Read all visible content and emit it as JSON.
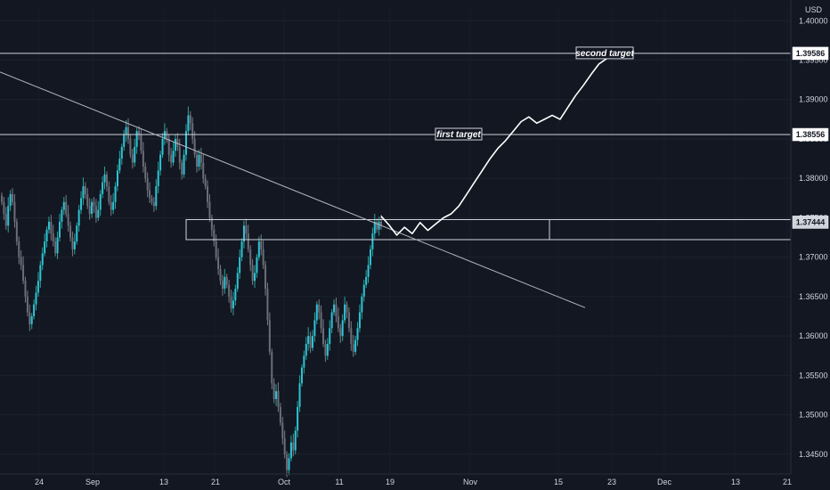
{
  "chart_data": {
    "type": "candlestick",
    "instrument_currency": "USD",
    "y_axis": {
      "min": 1.3425,
      "max": 1.4015,
      "ticks": [
        1.4,
        1.395,
        1.39,
        1.385,
        1.38,
        1.375,
        1.37,
        1.365,
        1.36,
        1.355,
        1.35,
        1.345
      ]
    },
    "x_axis": {
      "ticks": [
        "24",
        "Sep",
        "13",
        "21",
        "Oct",
        "11",
        "19",
        "Nov",
        "15",
        "23",
        "Dec",
        "13",
        "21"
      ]
    },
    "candles_close": [
      1.377,
      1.3755,
      1.374,
      1.3765,
      1.378,
      1.377,
      1.3745,
      1.372,
      1.37,
      1.369,
      1.367,
      1.365,
      1.363,
      1.3615,
      1.3625,
      1.364,
      1.3655,
      1.367,
      1.369,
      1.3705,
      1.372,
      1.3735,
      1.3745,
      1.373,
      1.372,
      1.3705,
      1.3725,
      1.3745,
      1.376,
      1.377,
      1.3755,
      1.374,
      1.3725,
      1.371,
      1.372,
      1.374,
      1.376,
      1.3775,
      1.379,
      1.378,
      1.3765,
      1.3755,
      1.377,
      1.3765,
      1.375,
      1.376,
      1.378,
      1.3795,
      1.3805,
      1.379,
      1.377,
      1.376,
      1.377,
      1.379,
      1.381,
      1.3825,
      1.384,
      1.3855,
      1.3865,
      1.385,
      1.383,
      1.382,
      1.384,
      1.386,
      1.3855,
      1.3835,
      1.3815,
      1.38,
      1.3785,
      1.3775,
      1.377,
      1.3765,
      1.379,
      1.381,
      1.383,
      1.385,
      1.386,
      1.385,
      1.383,
      1.382,
      1.3835,
      1.385,
      1.384,
      1.382,
      1.3805,
      1.383,
      1.386,
      1.388,
      1.387,
      1.385,
      1.383,
      1.3815,
      1.383,
      1.382,
      1.38,
      1.379,
      1.377,
      1.375,
      1.3735,
      1.372,
      1.37,
      1.3685,
      1.367,
      1.366,
      1.3675,
      1.3665,
      1.365,
      1.3635,
      1.3645,
      1.366,
      1.368,
      1.37,
      1.372,
      1.374,
      1.373,
      1.371,
      1.369,
      1.367,
      1.368,
      1.37,
      1.372,
      1.371,
      1.369,
      1.366,
      1.362,
      1.358,
      1.354,
      1.352,
      1.353,
      1.351,
      1.349,
      1.347,
      1.345,
      1.343,
      1.3445,
      1.3465,
      1.3455,
      1.348,
      1.351,
      1.354,
      1.356,
      1.3575,
      1.359,
      1.36,
      1.3585,
      1.36,
      1.362,
      1.364,
      1.363,
      1.361,
      1.359,
      1.3575,
      1.359,
      1.361,
      1.363,
      1.364,
      1.3625,
      1.361,
      1.36,
      1.362,
      1.364,
      1.363,
      1.361,
      1.359,
      1.358,
      1.3595,
      1.361,
      1.363,
      1.365,
      1.3665,
      1.3675,
      1.369,
      1.371,
      1.373,
      1.3745,
      1.3735,
      1.3745,
      1.374
    ],
    "horizontal_levels": [
      {
        "label": "1.39586",
        "value": 1.39586
      },
      {
        "label": "1.38556",
        "value": 1.38556
      },
      {
        "label": "1.37444",
        "value": 1.37444
      }
    ],
    "zone": {
      "from": 1.37223,
      "to": 1.37477
    },
    "trendline": [
      {
        "i": 0,
        "value": 1.3935
      },
      {
        "i": 230,
        "value": 1.3636
      }
    ],
    "annotations": [
      {
        "text": "first target",
        "value": 1.38556
      },
      {
        "text": "second target",
        "value": 1.39586
      }
    ],
    "projection_path": [
      [
        0,
        1.3752
      ],
      [
        3,
        1.3741
      ],
      [
        6,
        1.3728
      ],
      [
        9,
        1.3738
      ],
      [
        12,
        1.373
      ],
      [
        15,
        1.3744
      ],
      [
        18,
        1.3734
      ],
      [
        21,
        1.3742
      ],
      [
        24,
        1.375
      ],
      [
        27,
        1.3755
      ],
      [
        30,
        1.3765
      ],
      [
        33,
        1.378
      ],
      [
        36,
        1.3795
      ],
      [
        39,
        1.381
      ],
      [
        42,
        1.3825
      ],
      [
        45,
        1.3838
      ],
      [
        48,
        1.3848
      ],
      [
        51,
        1.386
      ],
      [
        54,
        1.3872
      ],
      [
        57,
        1.3878
      ],
      [
        60,
        1.387
      ],
      [
        63,
        1.3875
      ],
      [
        66,
        1.388
      ],
      [
        69,
        1.3875
      ],
      [
        72,
        1.389
      ],
      [
        75,
        1.3905
      ],
      [
        78,
        1.3918
      ],
      [
        81,
        1.3932
      ],
      [
        84,
        1.3945
      ],
      [
        87,
        1.3952
      ],
      [
        90,
        1.3958
      ]
    ]
  },
  "y_axis_unit": "USD"
}
